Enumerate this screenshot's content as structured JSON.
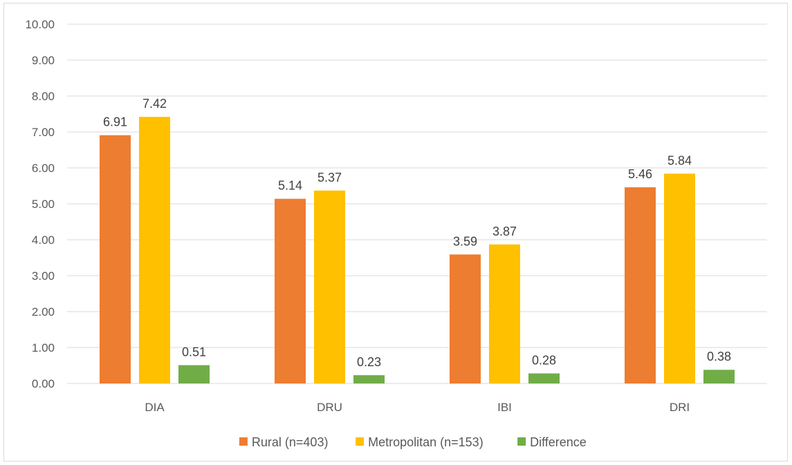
{
  "chart_data": {
    "type": "bar",
    "title": "",
    "xlabel": "",
    "ylabel": "",
    "categories": [
      "DIA",
      "DRU",
      "IBI",
      "DRI"
    ],
    "series": [
      {
        "name": "Rural (n=403)",
        "color": "#ED7D31",
        "values": [
          6.91,
          5.14,
          3.59,
          5.46
        ],
        "labels": [
          "6.91",
          "5.14",
          "3.59",
          "5.46"
        ]
      },
      {
        "name": "Metropolitan (n=153)",
        "color": "#FFC000",
        "values": [
          7.42,
          5.37,
          3.87,
          5.84
        ],
        "labels": [
          "7.42",
          "5.37",
          "3.87",
          "5.84"
        ]
      },
      {
        "name": "Difference",
        "color": "#70AD47",
        "values": [
          0.51,
          0.23,
          0.28,
          0.38
        ],
        "labels": [
          "0.51",
          "0.23",
          "0.28",
          "0.38"
        ]
      }
    ],
    "ylim": [
      0,
      10
    ],
    "yticks": [
      "0.00",
      "1.00",
      "2.00",
      "3.00",
      "4.00",
      "5.00",
      "6.00",
      "7.00",
      "8.00",
      "9.00",
      "10.00"
    ],
    "grid": true,
    "legend_position": "bottom",
    "gridline_color": "#d9d9d9"
  }
}
